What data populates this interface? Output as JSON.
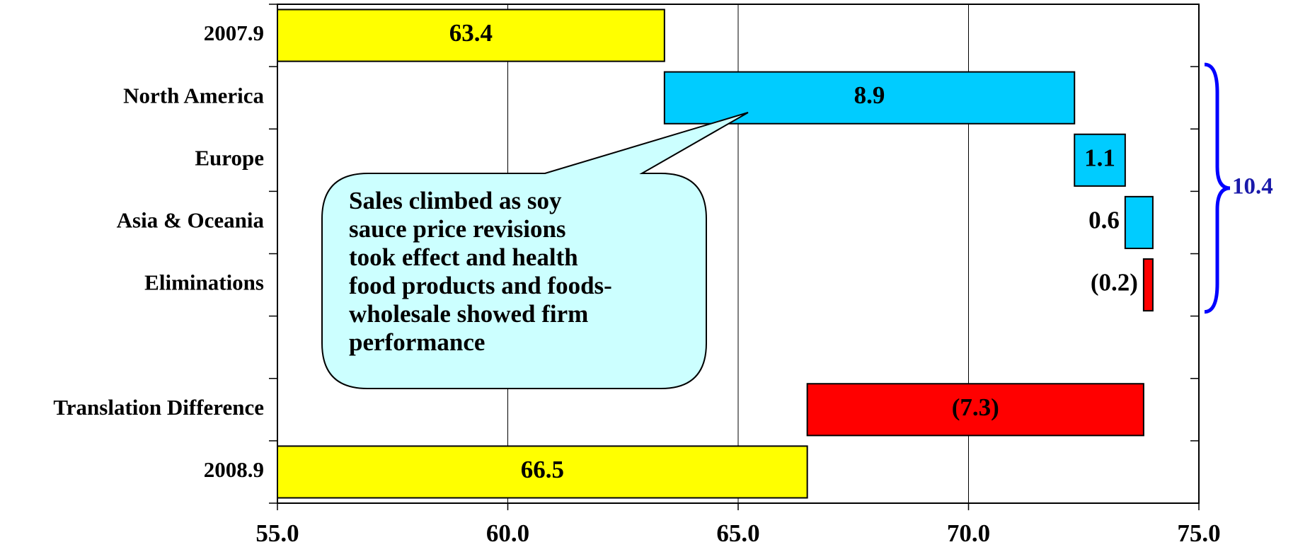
{
  "chart_data": {
    "type": "waterfall",
    "orientation": "horizontal",
    "categories": [
      "2007.9",
      "North America",
      "Europe",
      "Asia & Oceania",
      "Eliminations",
      null,
      "Translation Difference",
      "2008.9"
    ],
    "values": [
      63.4,
      8.9,
      1.1,
      0.6,
      -0.2,
      null,
      -7.3,
      66.5
    ],
    "value_labels": [
      "63.4",
      "8.9",
      "1.1",
      "0.6",
      "(0.2)",
      null,
      "(7.3)",
      "66.5"
    ],
    "kinds": [
      "total",
      "delta",
      "delta",
      "delta",
      "delta",
      null,
      "delta",
      "total"
    ],
    "colors": [
      "#ffff00",
      "#00ccff",
      "#00ccff",
      "#00ccff",
      "#ff0000",
      null,
      "#ff0000",
      "#ffff00"
    ],
    "xlim": [
      55,
      75
    ],
    "xticks": [
      {
        "value": 55,
        "label": "55.0"
      },
      {
        "value": 60,
        "label": "60.0"
      },
      {
        "value": 65,
        "label": "65.0"
      },
      {
        "value": 70,
        "label": "70.0"
      },
      {
        "value": 75,
        "label": "75.0"
      }
    ],
    "grid": true,
    "brace": {
      "value": 10.4,
      "color": "#0000ff"
    },
    "callout": [
      "Sales climbed as soy",
      "sauce price revisions",
      "took effect and health",
      "food products and foods-",
      "wholesale showed firm",
      "performance"
    ]
  }
}
